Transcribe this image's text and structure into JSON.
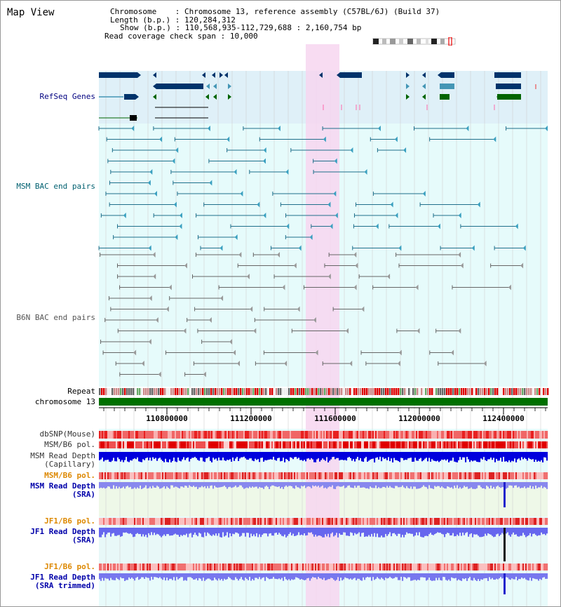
{
  "title": "Map View",
  "info": {
    "chromosome_key": "Chromosome",
    "chromosome_val": "Chromosome 13, reference assembly (C57BL/6J) (Build 37)",
    "length_key": "Length (b.p.)",
    "length_val": "120,284,312",
    "show_key": "Show (b.p.)",
    "show_val": "110,568,935-112,729,688 : 2,160,754 bp",
    "coverage_key": "Read coverage check span",
    "coverage_val": "10,000"
  },
  "tracks": {
    "refseq": "RefSeq Genes",
    "msm_bac": "MSM BAC end pairs",
    "b6n_bac": "B6N BAC end pairs",
    "repeat": "Repeat",
    "chromosome": "chromosome 13",
    "dbsnp": "dbSNP(Mouse)",
    "msm_b6_pol": "MSM/B6 pol.",
    "msm_depth_cap_1": "MSM Read Depth",
    "msm_depth_cap_2": "(Capillary)",
    "msm_b6_pol2": "MSM/B6 pol.",
    "msm_depth_sra_1": "MSM Read Depth",
    "msm_depth_sra_2": "(SRA)",
    "jf1_b6_pol": "JF1/B6 pol.",
    "jf1_depth_sra_1": "JF1 Read Depth",
    "jf1_depth_sra_2": "(SRA)",
    "jf1_b6_pol2": "JF1/B6 pol.",
    "jf1_depth_trim_1": "JF1 Read Depth",
    "jf1_depth_trim_2": "(SRA trimmed)"
  },
  "axis": {
    "ticks": [
      "110800000",
      "111200000",
      "111600000",
      "112000000",
      "112400000"
    ]
  },
  "colors": {
    "refseq_bg": "#dff0f8",
    "bac_bg": "#e6fbfb",
    "highlight": "#f7d6f0",
    "refseq_dark": "#00336b",
    "refseq_teal": "#4496b5",
    "refseq_green": "#006400",
    "msm_line": "#1f6f8b",
    "b6n_line": "#666666",
    "chromosome_bar": "#007000",
    "depth_blue": "#0000dd",
    "depth_light": "#8888ee",
    "label_navy": "#000080",
    "label_orange": "#dd8800",
    "label_teal": "#006070"
  }
}
